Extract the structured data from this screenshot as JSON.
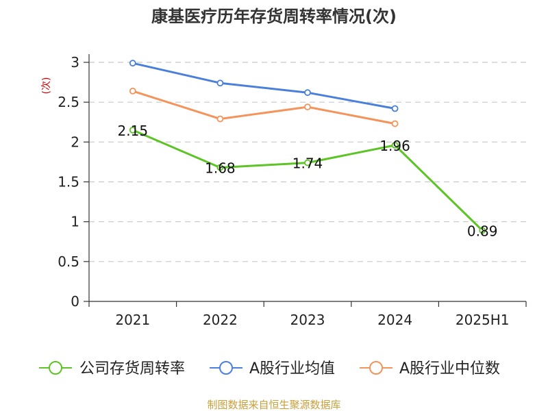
{
  "chart_data": {
    "type": "line",
    "title": "康基医疗历年存货周转率情况(次)",
    "ylabel": "(次)",
    "source": "制图数据来自恒生聚源数据库",
    "categories": [
      "2021",
      "2022",
      "2023",
      "2024",
      "2025H1"
    ],
    "ylim": [
      0,
      3
    ],
    "yticks": [
      "0",
      "0.5",
      "1",
      "1.5",
      "2",
      "2.5",
      "3"
    ],
    "grid": true,
    "legend_position": "bottom",
    "series": [
      {
        "name": "公司存货周转率",
        "color": "#5cc424",
        "values": [
          2.15,
          1.68,
          1.74,
          1.96,
          0.89
        ],
        "labels": [
          "2.15",
          "1.68",
          "1.74",
          "1.96",
          "0.89"
        ]
      },
      {
        "name": "A股行业均值",
        "color": "#4a7fdc",
        "values": [
          2.99,
          2.74,
          2.62,
          2.42,
          null
        ]
      },
      {
        "name": "A股行业中位数",
        "color": "#f4935a",
        "values": [
          2.64,
          2.29,
          2.44,
          2.23,
          null
        ]
      }
    ]
  }
}
